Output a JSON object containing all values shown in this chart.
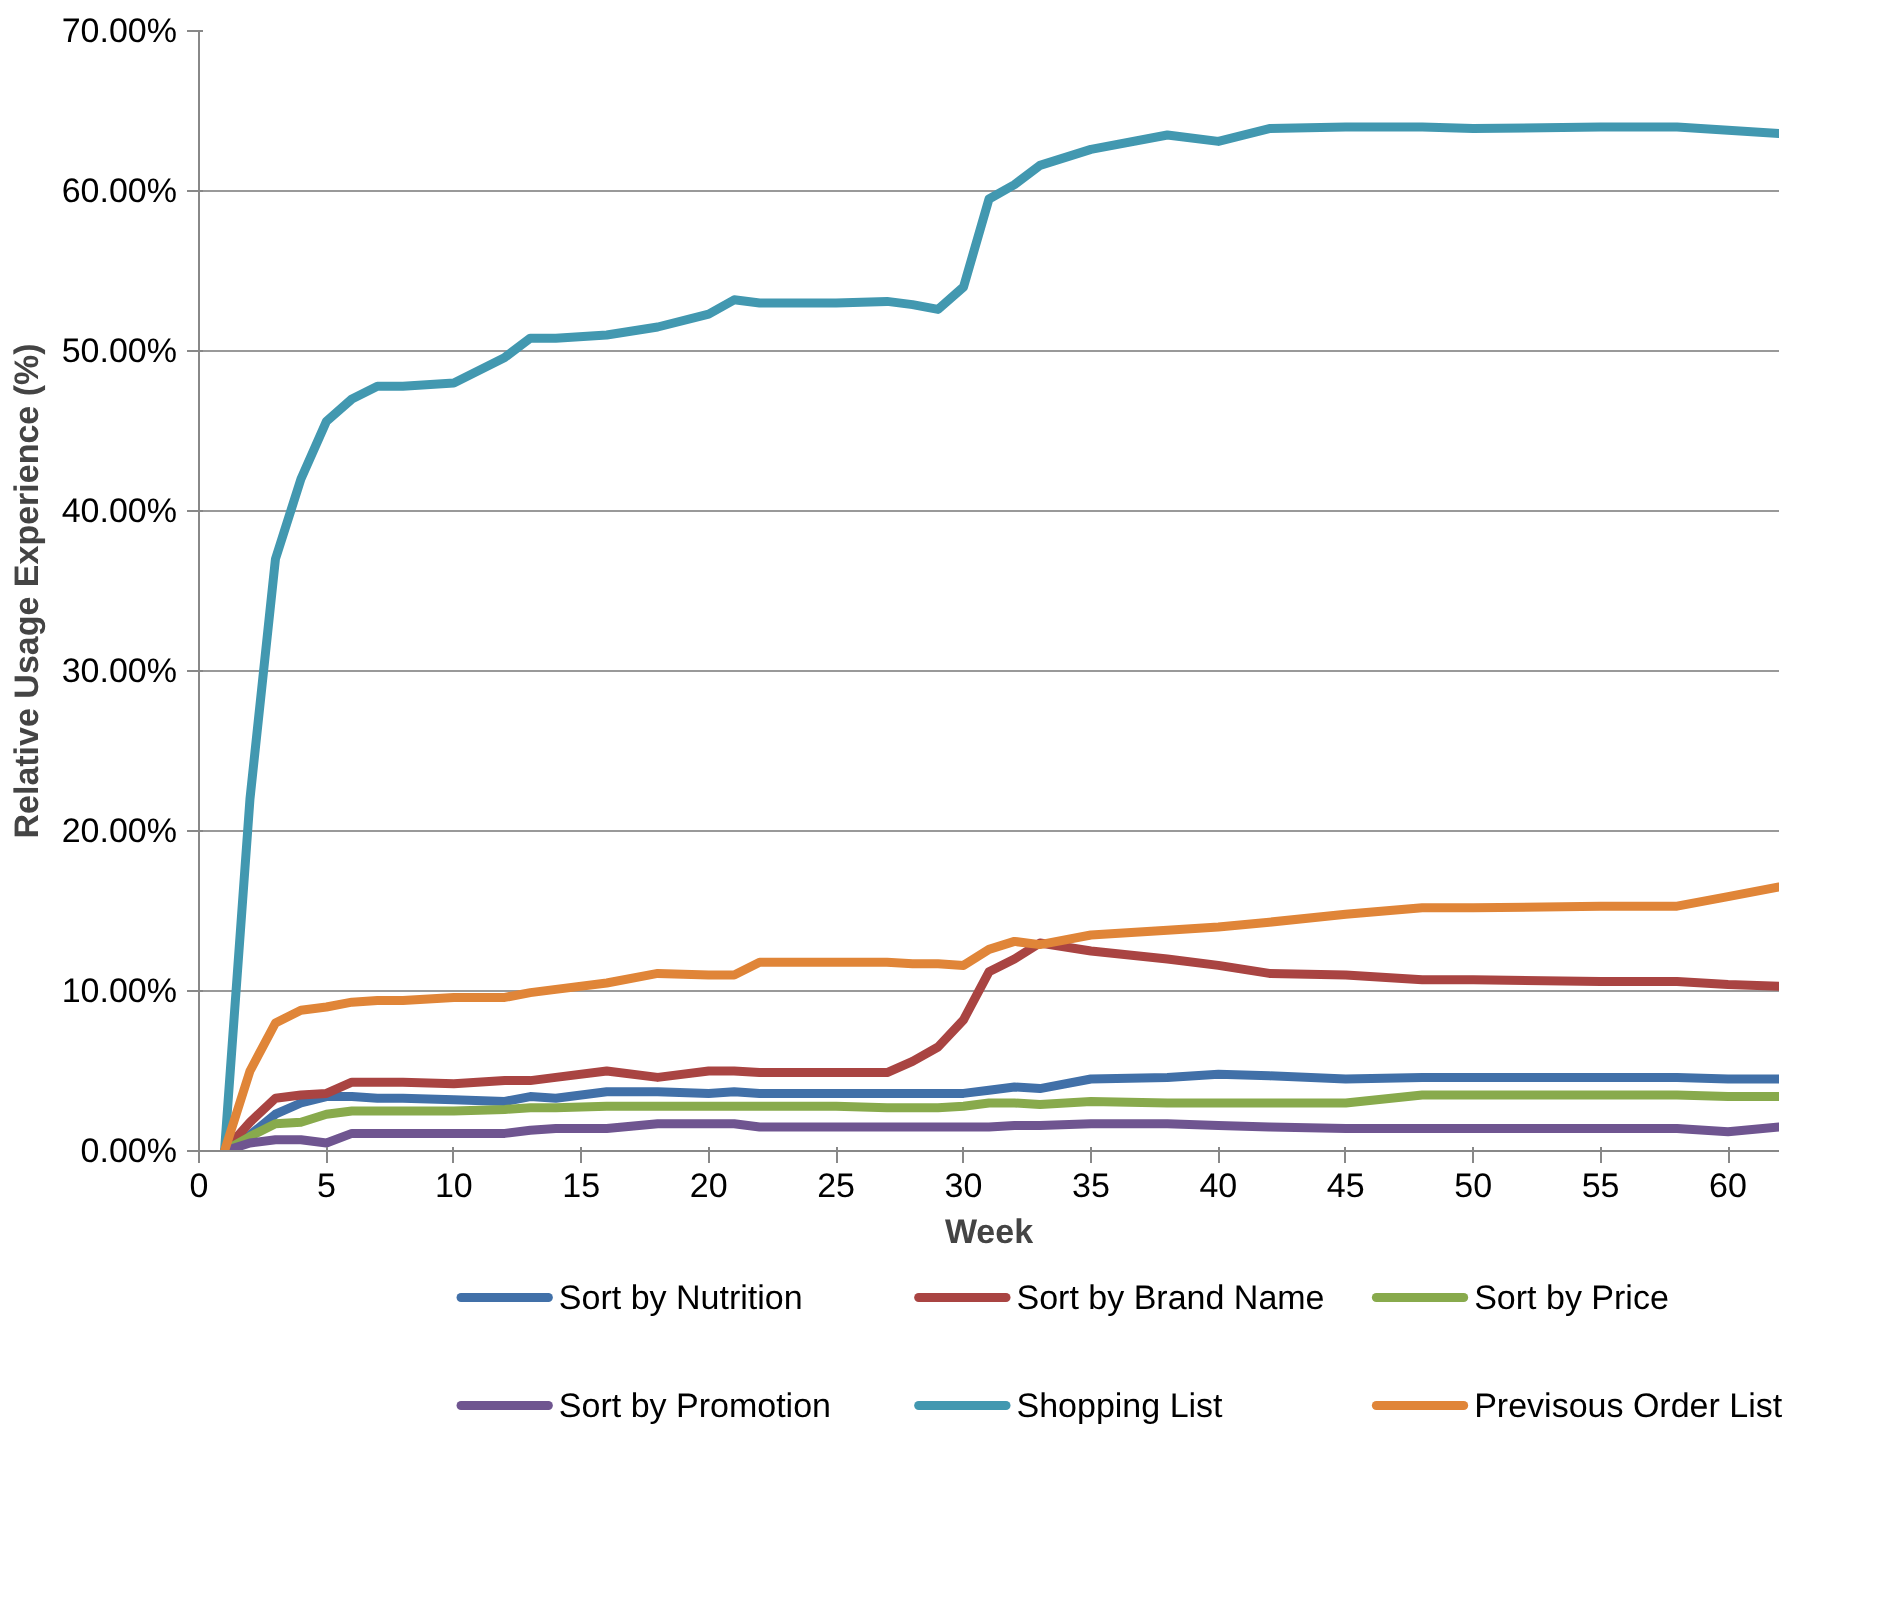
{
  "chart_data": {
    "type": "line",
    "xlabel": "Week",
    "ylabel": "Relative Usage Experience (%)",
    "x": [
      1,
      2,
      3,
      4,
      5,
      6,
      7,
      8,
      10,
      12,
      13,
      14,
      16,
      18,
      20,
      21,
      22,
      25,
      27,
      28,
      29,
      30,
      31,
      32,
      33,
      35,
      38,
      40,
      42,
      45,
      48,
      50,
      55,
      58,
      60,
      62
    ],
    "series": [
      {
        "name": "Sort by Nutrition",
        "color": "#4170a8",
        "values": [
          0,
          1,
          2.3,
          3,
          3.4,
          3.4,
          3.3,
          3.3,
          3.2,
          3.1,
          3.4,
          3.3,
          3.7,
          3.7,
          3.6,
          3.7,
          3.6,
          3.6,
          3.6,
          3.6,
          3.6,
          3.6,
          3.8,
          4,
          3.9,
          4.5,
          4.6,
          4.8,
          4.7,
          4.5,
          4.6,
          4.6,
          4.6,
          4.6,
          4.5,
          4.5
        ]
      },
      {
        "name": "Sort by Brand Name",
        "color": "#a94442",
        "values": [
          0,
          1.8,
          3.3,
          3.5,
          3.6,
          4.3,
          4.3,
          4.3,
          4.2,
          4.4,
          4.4,
          4.6,
          5,
          4.6,
          5,
          5,
          4.9,
          4.9,
          4.9,
          5.6,
          6.5,
          8.2,
          11.2,
          12,
          13,
          12.5,
          12,
          11.6,
          11.1,
          11,
          10.7,
          10.7,
          10.6,
          10.6,
          10.4,
          10.3
        ]
      },
      {
        "name": "Sort by Price",
        "color": "#88aa4c",
        "values": [
          0,
          0.9,
          1.7,
          1.8,
          2.3,
          2.5,
          2.5,
          2.5,
          2.5,
          2.6,
          2.7,
          2.7,
          2.8,
          2.8,
          2.8,
          2.8,
          2.8,
          2.8,
          2.7,
          2.7,
          2.7,
          2.8,
          3,
          3,
          2.9,
          3.1,
          3,
          3,
          3,
          3,
          3.5,
          3.5,
          3.5,
          3.5,
          3.4,
          3.4
        ]
      },
      {
        "name": "Sort by Promotion",
        "color": "#6f5590",
        "values": [
          0,
          0.5,
          0.7,
          0.7,
          0.5,
          1.1,
          1.1,
          1.1,
          1.1,
          1.1,
          1.3,
          1.4,
          1.4,
          1.7,
          1.7,
          1.7,
          1.5,
          1.5,
          1.5,
          1.5,
          1.5,
          1.5,
          1.5,
          1.6,
          1.6,
          1.7,
          1.7,
          1.6,
          1.5,
          1.4,
          1.4,
          1.4,
          1.4,
          1.4,
          1.2,
          1.5
        ]
      },
      {
        "name": "Shopping List",
        "color": "#4298b0",
        "values": [
          0,
          22,
          37,
          42,
          45.6,
          47,
          47.8,
          47.8,
          48,
          49.6,
          50.8,
          50.8,
          51,
          51.5,
          52.3,
          53.2,
          53,
          53,
          53.1,
          52.9,
          52.6,
          54,
          59.5,
          60.4,
          61.6,
          62.6,
          63.5,
          63.1,
          63.9,
          64,
          64,
          63.9,
          64,
          64,
          63.8,
          63.6
        ]
      },
      {
        "name": "Previsous Order List",
        "color": "#e08538",
        "values": [
          0,
          5,
          8,
          8.8,
          9,
          9.3,
          9.4,
          9.4,
          9.6,
          9.6,
          9.9,
          10.1,
          10.5,
          11.1,
          11,
          11,
          11.8,
          11.8,
          11.8,
          11.7,
          11.7,
          11.6,
          12.6,
          13.1,
          12.9,
          13.5,
          13.8,
          14,
          14.3,
          14.8,
          15.2,
          15.2,
          15.3,
          15.3,
          15.9,
          16.5
        ]
      }
    ],
    "xlim": [
      0,
      62
    ],
    "xticks": [
      0,
      5,
      10,
      15,
      20,
      25,
      30,
      35,
      40,
      45,
      50,
      55,
      60
    ],
    "ylim": [
      0,
      70
    ],
    "yticks": [
      {
        "value": 0,
        "label": "0.00%"
      },
      {
        "value": 10,
        "label": "10.00%"
      },
      {
        "value": 20,
        "label": "20.00%"
      },
      {
        "value": 30,
        "label": "30.00%"
      },
      {
        "value": 40,
        "label": "40.00%"
      },
      {
        "value": 50,
        "label": "50.00%"
      },
      {
        "value": 60,
        "label": "60.00%"
      },
      {
        "value": 70,
        "label": "70.00%"
      }
    ],
    "grid": "y",
    "legend": "bottom",
    "marker": "none",
    "line_style": "solid"
  }
}
